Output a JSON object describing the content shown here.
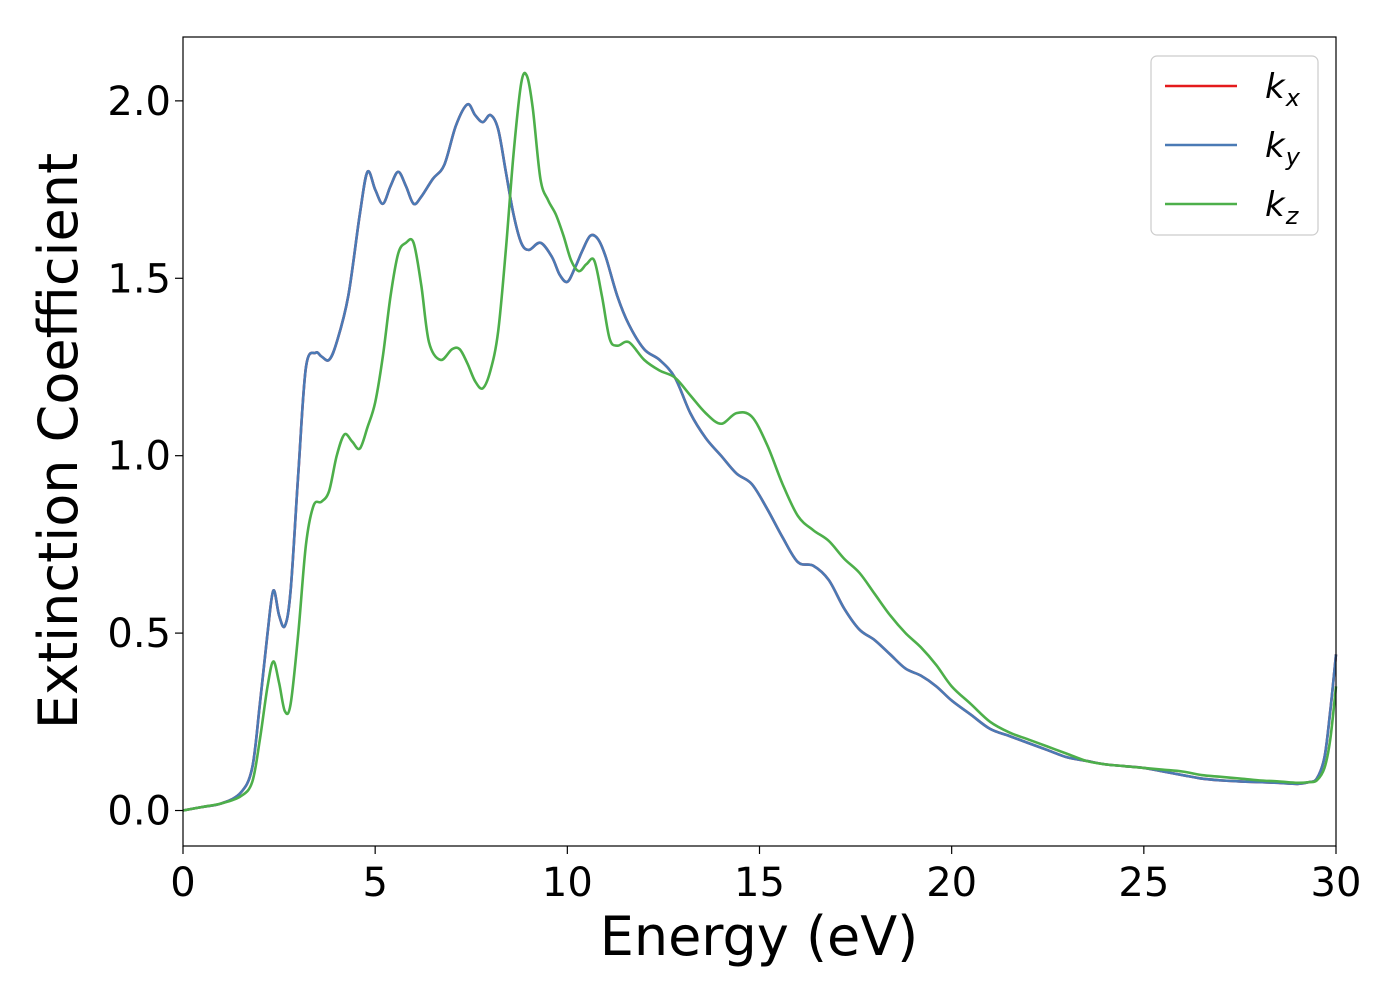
{
  "chart_data": {
    "type": "line",
    "title": "",
    "xlabel": "Energy (eV)",
    "ylabel": "Extinction Coefficient",
    "xlim": [
      0,
      30
    ],
    "ylim": [
      -0.1,
      2.18
    ],
    "xticks": [
      0,
      5,
      10,
      15,
      20,
      25,
      30
    ],
    "xtick_labels": [
      "0",
      "5",
      "10",
      "15",
      "20",
      "25",
      "30"
    ],
    "yticks": [
      0.0,
      0.5,
      1.0,
      1.5,
      2.0
    ],
    "ytick_labels": [
      "0.0",
      "0.5",
      "1.0",
      "1.5",
      "2.0"
    ],
    "grid": false,
    "legend_position": "top-right",
    "series": [
      {
        "name": "k_x",
        "legend_main": "k",
        "legend_sub": "x",
        "color": "#e41a1c",
        "x": [
          0,
          0.5,
          1.0,
          1.5,
          1.8,
          2.0,
          2.2,
          2.35,
          2.5,
          2.65,
          2.8,
          3.0,
          3.2,
          3.45,
          3.6,
          3.8,
          4.0,
          4.3,
          4.6,
          4.8,
          5.0,
          5.2,
          5.4,
          5.6,
          5.8,
          6.0,
          6.2,
          6.5,
          6.8,
          7.1,
          7.4,
          7.6,
          7.8,
          8.0,
          8.2,
          8.4,
          8.6,
          8.8,
          9.0,
          9.3,
          9.6,
          9.8,
          10.0,
          10.2,
          10.4,
          10.6,
          10.8,
          11.0,
          11.3,
          11.6,
          12.0,
          12.4,
          12.8,
          13.2,
          13.6,
          14.0,
          14.4,
          14.8,
          15.2,
          15.6,
          16.0,
          16.4,
          16.8,
          17.2,
          17.6,
          18.0,
          18.4,
          18.8,
          19.2,
          19.6,
          20.0,
          20.5,
          21.0,
          21.5,
          22.0,
          22.5,
          23.0,
          23.5,
          24.0,
          24.5,
          25.0,
          25.5,
          26.0,
          26.5,
          27.0,
          27.5,
          28.0,
          28.5,
          29.0,
          29.3,
          29.5,
          29.7,
          29.85,
          30.0
        ],
        "values": [
          0,
          0.01,
          0.02,
          0.05,
          0.12,
          0.3,
          0.5,
          0.62,
          0.55,
          0.52,
          0.62,
          0.95,
          1.25,
          1.29,
          1.28,
          1.27,
          1.32,
          1.45,
          1.68,
          1.8,
          1.75,
          1.71,
          1.76,
          1.8,
          1.76,
          1.71,
          1.73,
          1.78,
          1.82,
          1.93,
          1.99,
          1.96,
          1.94,
          1.96,
          1.92,
          1.8,
          1.68,
          1.6,
          1.58,
          1.6,
          1.56,
          1.51,
          1.49,
          1.53,
          1.58,
          1.62,
          1.61,
          1.56,
          1.45,
          1.37,
          1.3,
          1.27,
          1.22,
          1.12,
          1.05,
          1.0,
          0.95,
          0.92,
          0.85,
          0.77,
          0.7,
          0.69,
          0.65,
          0.57,
          0.51,
          0.48,
          0.44,
          0.4,
          0.38,
          0.35,
          0.31,
          0.27,
          0.23,
          0.21,
          0.19,
          0.17,
          0.15,
          0.14,
          0.13,
          0.125,
          0.12,
          0.11,
          0.1,
          0.09,
          0.085,
          0.082,
          0.08,
          0.078,
          0.075,
          0.08,
          0.09,
          0.15,
          0.28,
          0.44
        ]
      },
      {
        "name": "k_y",
        "legend_main": "k",
        "legend_sub": "y",
        "color": "#4a7ab5",
        "x": [
          0,
          0.5,
          1.0,
          1.5,
          1.8,
          2.0,
          2.2,
          2.35,
          2.5,
          2.65,
          2.8,
          3.0,
          3.2,
          3.45,
          3.6,
          3.8,
          4.0,
          4.3,
          4.6,
          4.8,
          5.0,
          5.2,
          5.4,
          5.6,
          5.8,
          6.0,
          6.2,
          6.5,
          6.8,
          7.1,
          7.4,
          7.6,
          7.8,
          8.0,
          8.2,
          8.4,
          8.6,
          8.8,
          9.0,
          9.3,
          9.6,
          9.8,
          10.0,
          10.2,
          10.4,
          10.6,
          10.8,
          11.0,
          11.3,
          11.6,
          12.0,
          12.4,
          12.8,
          13.2,
          13.6,
          14.0,
          14.4,
          14.8,
          15.2,
          15.6,
          16.0,
          16.4,
          16.8,
          17.2,
          17.6,
          18.0,
          18.4,
          18.8,
          19.2,
          19.6,
          20.0,
          20.5,
          21.0,
          21.5,
          22.0,
          22.5,
          23.0,
          23.5,
          24.0,
          24.5,
          25.0,
          25.5,
          26.0,
          26.5,
          27.0,
          27.5,
          28.0,
          28.5,
          29.0,
          29.3,
          29.5,
          29.7,
          29.85,
          30.0
        ],
        "values": [
          0,
          0.01,
          0.02,
          0.05,
          0.12,
          0.3,
          0.5,
          0.62,
          0.55,
          0.52,
          0.62,
          0.95,
          1.25,
          1.29,
          1.28,
          1.27,
          1.32,
          1.45,
          1.68,
          1.8,
          1.75,
          1.71,
          1.76,
          1.8,
          1.76,
          1.71,
          1.73,
          1.78,
          1.82,
          1.93,
          1.99,
          1.96,
          1.94,
          1.96,
          1.92,
          1.8,
          1.68,
          1.6,
          1.58,
          1.6,
          1.56,
          1.51,
          1.49,
          1.53,
          1.58,
          1.62,
          1.61,
          1.56,
          1.45,
          1.37,
          1.3,
          1.27,
          1.22,
          1.12,
          1.05,
          1.0,
          0.95,
          0.92,
          0.85,
          0.77,
          0.7,
          0.69,
          0.65,
          0.57,
          0.51,
          0.48,
          0.44,
          0.4,
          0.38,
          0.35,
          0.31,
          0.27,
          0.23,
          0.21,
          0.19,
          0.17,
          0.15,
          0.14,
          0.13,
          0.125,
          0.12,
          0.11,
          0.1,
          0.09,
          0.085,
          0.082,
          0.08,
          0.078,
          0.075,
          0.08,
          0.09,
          0.15,
          0.28,
          0.44
        ]
      },
      {
        "name": "k_z",
        "legend_main": "k",
        "legend_sub": "z",
        "color": "#4daf4a",
        "x": [
          0,
          0.5,
          1.0,
          1.5,
          1.8,
          2.0,
          2.2,
          2.35,
          2.5,
          2.65,
          2.8,
          3.0,
          3.2,
          3.4,
          3.6,
          3.8,
          4.0,
          4.2,
          4.4,
          4.6,
          4.8,
          5.0,
          5.2,
          5.4,
          5.6,
          5.8,
          6.0,
          6.2,
          6.4,
          6.7,
          7.0,
          7.2,
          7.4,
          7.6,
          7.8,
          8.0,
          8.2,
          8.4,
          8.6,
          8.8,
          8.95,
          9.1,
          9.3,
          9.5,
          9.7,
          9.9,
          10.1,
          10.3,
          10.5,
          10.7,
          10.9,
          11.1,
          11.3,
          11.6,
          12.0,
          12.4,
          12.8,
          13.2,
          13.6,
          14.0,
          14.4,
          14.8,
          15.2,
          15.6,
          16.0,
          16.4,
          16.8,
          17.2,
          17.6,
          18.0,
          18.4,
          18.8,
          19.2,
          19.6,
          20.0,
          20.5,
          21.0,
          21.5,
          22.0,
          22.5,
          23.0,
          23.5,
          24.0,
          24.5,
          25.0,
          25.5,
          26.0,
          26.5,
          27.0,
          27.5,
          28.0,
          28.5,
          29.0,
          29.3,
          29.5,
          29.7,
          29.85,
          30.0
        ],
        "values": [
          0,
          0.01,
          0.02,
          0.04,
          0.08,
          0.2,
          0.35,
          0.42,
          0.36,
          0.28,
          0.3,
          0.5,
          0.75,
          0.86,
          0.87,
          0.9,
          1.0,
          1.06,
          1.04,
          1.02,
          1.08,
          1.15,
          1.28,
          1.45,
          1.57,
          1.6,
          1.6,
          1.48,
          1.32,
          1.27,
          1.3,
          1.3,
          1.26,
          1.21,
          1.19,
          1.24,
          1.35,
          1.58,
          1.85,
          2.05,
          2.07,
          1.98,
          1.78,
          1.72,
          1.68,
          1.62,
          1.55,
          1.52,
          1.54,
          1.55,
          1.45,
          1.33,
          1.31,
          1.32,
          1.27,
          1.24,
          1.22,
          1.17,
          1.12,
          1.09,
          1.12,
          1.11,
          1.03,
          0.92,
          0.83,
          0.79,
          0.76,
          0.71,
          0.67,
          0.61,
          0.55,
          0.5,
          0.46,
          0.41,
          0.35,
          0.3,
          0.25,
          0.22,
          0.2,
          0.18,
          0.16,
          0.14,
          0.13,
          0.125,
          0.12,
          0.115,
          0.11,
          0.1,
          0.095,
          0.09,
          0.085,
          0.082,
          0.078,
          0.08,
          0.085,
          0.12,
          0.2,
          0.35
        ]
      }
    ]
  }
}
